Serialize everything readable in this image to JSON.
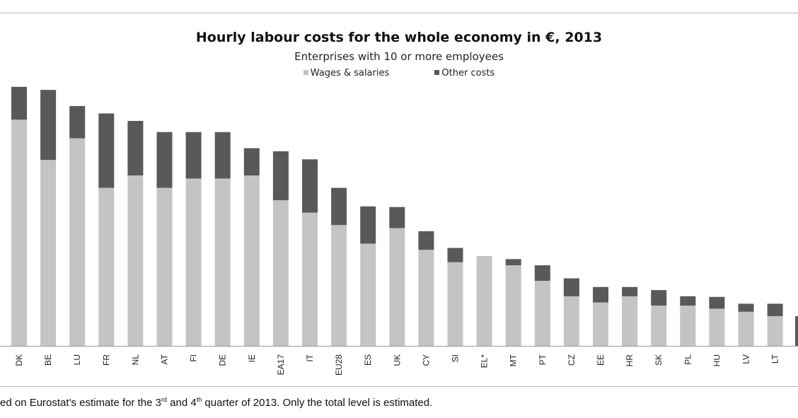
{
  "chart_data": {
    "type": "bar",
    "stacked": true,
    "title": "Hourly labour costs for the whole economy in €, 2013",
    "subtitle": "Enterprises with 10 or more employees",
    "legend": [
      "Wages & salaries",
      "Other costs"
    ],
    "legend_placement": "top-center",
    "grid": false,
    "ylim": [
      0,
      42
    ],
    "categories": [
      "DK",
      "BE",
      "LU",
      "FR",
      "NL",
      "AT",
      "FI",
      "DE",
      "IE",
      "EA17",
      "IT",
      "EU28",
      "ES",
      "UK",
      "CY",
      "SI",
      "EL*",
      "MT",
      "PT",
      "CZ",
      "EE",
      "HR",
      "SK",
      "PL",
      "HU",
      "LV",
      "LT"
    ],
    "series": [
      {
        "name": "Wages & salaries",
        "color": "#c4c4c4",
        "values": [
          36.5,
          30.0,
          33.5,
          25.5,
          27.5,
          25.5,
          27.0,
          27.0,
          27.5,
          23.5,
          21.5,
          19.5,
          16.5,
          19.0,
          15.5,
          13.5,
          14.5,
          13.0,
          10.5,
          8.0,
          7.0,
          8.0,
          6.5,
          6.5,
          6.0,
          5.5,
          4.8
        ]
      },
      {
        "name": "Other costs",
        "color": "#595959",
        "values": [
          5.3,
          11.3,
          5.2,
          12.0,
          8.8,
          9.0,
          7.5,
          7.5,
          4.4,
          7.9,
          8.6,
          6.0,
          6.0,
          3.4,
          3.0,
          2.3,
          0.0,
          1.0,
          2.5,
          2.9,
          2.5,
          1.5,
          2.5,
          1.5,
          1.9,
          1.3,
          2.0
        ]
      }
    ]
  },
  "footnote": {
    "part1": "ed on Eurostat's estimate for the 3",
    "sup1": "rd",
    "part2": " and 4",
    "sup2": "th",
    "part3": " quarter of 2013. Only the total level is estimated."
  }
}
